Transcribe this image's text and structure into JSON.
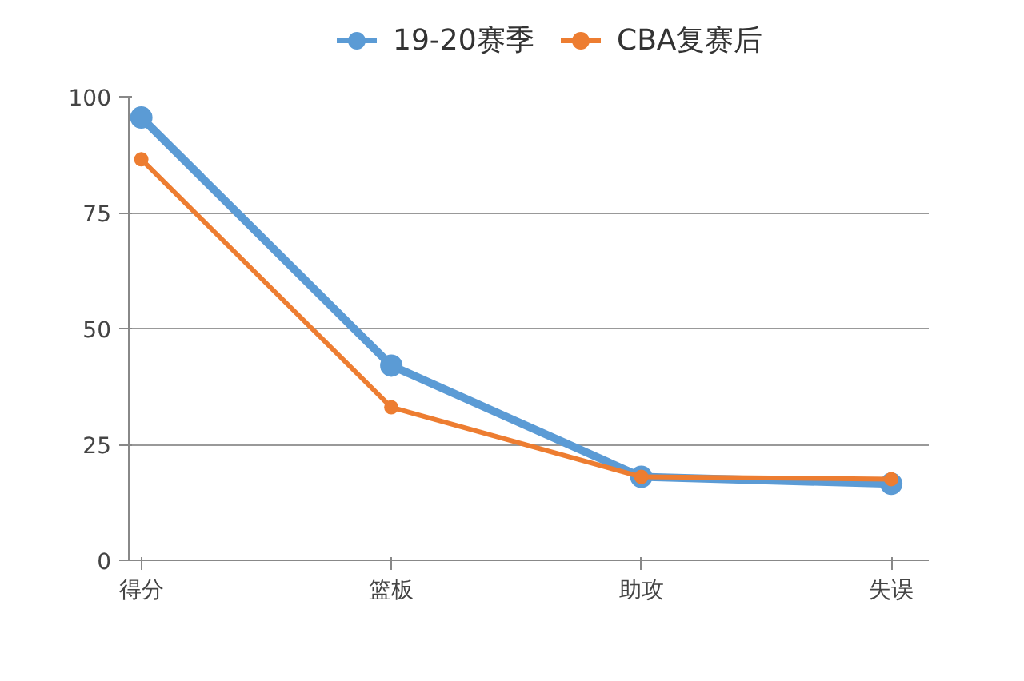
{
  "chart_data": {
    "type": "line",
    "categories": [
      "得分",
      "篮板",
      "助攻",
      "失误"
    ],
    "series": [
      {
        "name": "19-20赛季",
        "color": "#5b9bd5",
        "values": [
          95.5,
          42,
          18,
          16.5
        ]
      },
      {
        "name": "CBA复赛后",
        "color": "#ed7d31",
        "values": [
          86.5,
          33,
          18,
          17.5
        ]
      }
    ],
    "ylim": [
      0,
      100
    ],
    "yticks": [
      0,
      25,
      50,
      75,
      100
    ],
    "grid": "y",
    "legend": "top",
    "marker": "circle",
    "line_style": "solid"
  }
}
